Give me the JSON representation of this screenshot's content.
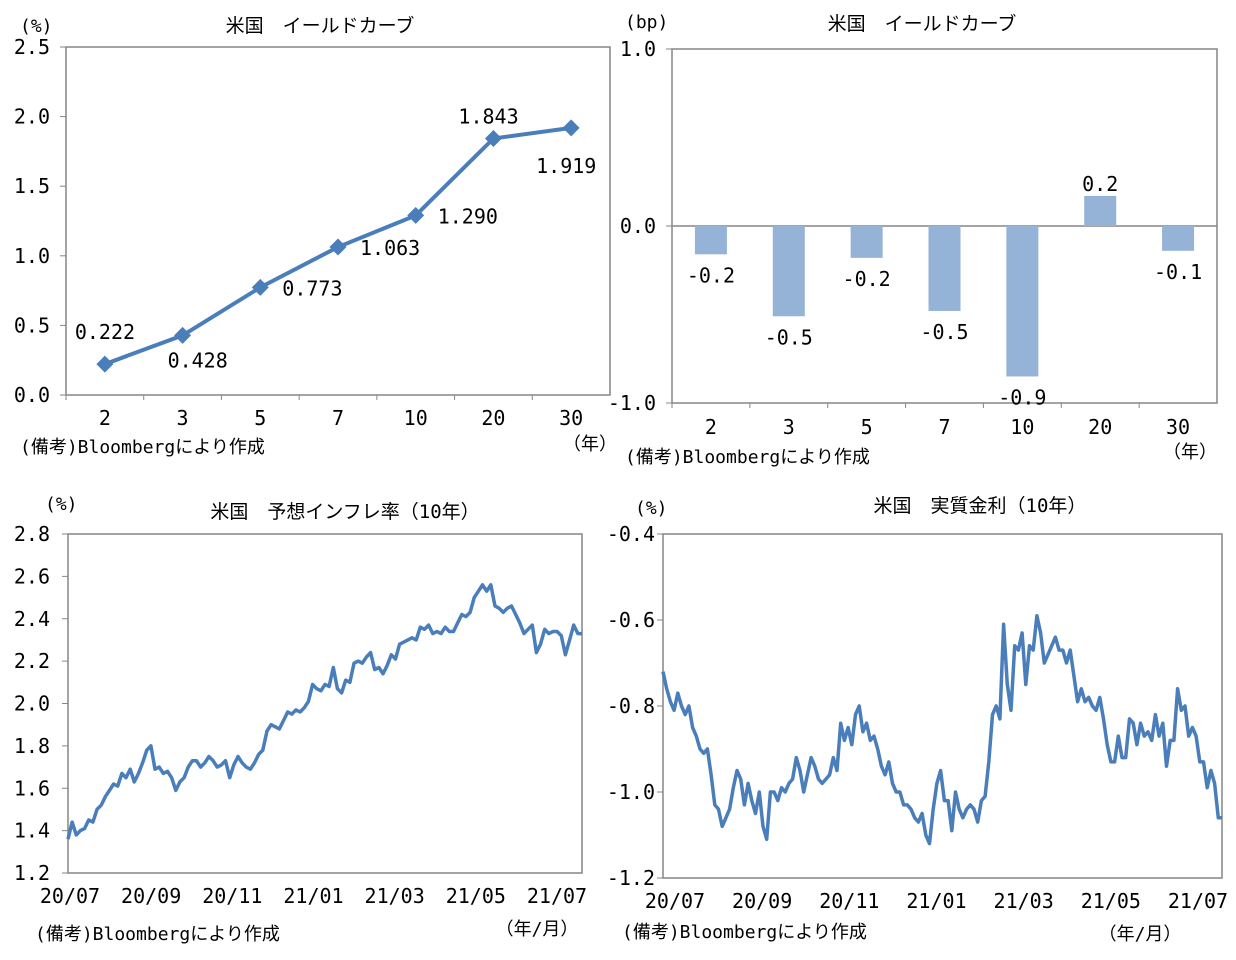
{
  "colors": {
    "line": "#4a7ebb",
    "bar": "#95b3d7",
    "axis": "#868686"
  },
  "chart_data": [
    {
      "type": "line",
      "title": "米国　イールドカーブ",
      "unit_label": "(%)",
      "xunit": "（年）",
      "note": "(備考)Bloombergにより作成",
      "categories": [
        "2",
        "3",
        "5",
        "7",
        "10",
        "20",
        "30"
      ],
      "values": [
        0.222,
        0.428,
        0.773,
        1.063,
        1.29,
        1.843,
        1.919
      ],
      "data_labels": [
        "0.222",
        "0.428",
        "0.773",
        "1.063",
        "1.290",
        "1.843",
        "1.919"
      ],
      "ylim": [
        0,
        2.5
      ],
      "yticks": [
        "0.0",
        "0.5",
        "1.0",
        "1.5",
        "2.0",
        "2.5"
      ],
      "grid": false
    },
    {
      "type": "bar",
      "title": "米国　イールドカーブ",
      "unit_label": "(bp)",
      "xunit": "（年）",
      "note": "(備考)Bloombergにより作成",
      "categories": [
        "2",
        "3",
        "5",
        "7",
        "10",
        "20",
        "30"
      ],
      "values": [
        -0.16,
        -0.51,
        -0.18,
        -0.48,
        -0.85,
        0.17,
        -0.14
      ],
      "data_labels": [
        "-0.2",
        "-0.5",
        "-0.2",
        "-0.5",
        "-0.9",
        "0.2",
        "-0.1"
      ],
      "ylim": [
        -1,
        1
      ],
      "yticks": [
        "-1.0",
        "0.0",
        "1.0"
      ],
      "grid": false
    },
    {
      "type": "line",
      "title": "米国　予想インフレ率（10年）",
      "unit_label": "(%)",
      "xunit": "（年/月）",
      "note": "(備考)Bloombergにより作成",
      "xticks": [
        "20/07",
        "20/09",
        "20/11",
        "21/01",
        "21/03",
        "21/05",
        "21/07"
      ],
      "ylim": [
        1.2,
        2.8
      ],
      "yticks": [
        "1.2",
        "1.4",
        "1.6",
        "1.8",
        "2.0",
        "2.2",
        "2.4",
        "2.6",
        "2.8"
      ],
      "values": [
        1.36,
        1.44,
        1.38,
        1.4,
        1.41,
        1.45,
        1.44,
        1.5,
        1.52,
        1.56,
        1.59,
        1.62,
        1.61,
        1.67,
        1.65,
        1.69,
        1.63,
        1.67,
        1.72,
        1.78,
        1.8,
        1.69,
        1.7,
        1.67,
        1.68,
        1.65,
        1.59,
        1.63,
        1.65,
        1.7,
        1.73,
        1.73,
        1.7,
        1.72,
        1.75,
        1.73,
        1.7,
        1.71,
        1.73,
        1.65,
        1.71,
        1.75,
        1.72,
        1.7,
        1.69,
        1.72,
        1.76,
        1.78,
        1.87,
        1.9,
        1.89,
        1.88,
        1.92,
        1.96,
        1.95,
        1.97,
        1.96,
        1.98,
        2.01,
        2.09,
        2.07,
        2.06,
        2.09,
        2.08,
        2.17,
        2.07,
        2.05,
        2.11,
        2.1,
        2.19,
        2.2,
        2.19,
        2.22,
        2.24,
        2.16,
        2.17,
        2.14,
        2.18,
        2.23,
        2.21,
        2.28,
        2.29,
        2.3,
        2.31,
        2.3,
        2.36,
        2.35,
        2.37,
        2.33,
        2.34,
        2.33,
        2.36,
        2.34,
        2.34,
        2.38,
        2.42,
        2.41,
        2.43,
        2.5,
        2.53,
        2.56,
        2.53,
        2.56,
        2.46,
        2.45,
        2.43,
        2.45,
        2.46,
        2.42,
        2.38,
        2.33,
        2.35,
        2.37,
        2.24,
        2.28,
        2.35,
        2.33,
        2.34,
        2.34,
        2.32,
        2.23,
        2.3,
        2.37,
        2.33,
        2.33
      ]
    },
    {
      "type": "line",
      "title": "米国　実質金利（10年）",
      "unit_label": "(%)",
      "xunit": "（年/月）",
      "note": "(備考)Bloombergにより作成",
      "xticks": [
        "20/07",
        "20/09",
        "20/11",
        "21/01",
        "21/03",
        "21/05",
        "21/07"
      ],
      "ylim": [
        -1.2,
        -0.4
      ],
      "yticks": [
        "-1.2",
        "-1.0",
        "-0.8",
        "-0.6",
        "-0.4"
      ],
      "values": [
        -0.72,
        -0.76,
        -0.79,
        -0.81,
        -0.77,
        -0.8,
        -0.82,
        -0.8,
        -0.85,
        -0.87,
        -0.9,
        -0.91,
        -0.9,
        -0.96,
        -1.03,
        -1.04,
        -1.08,
        -1.06,
        -1.04,
        -0.99,
        -0.95,
        -0.97,
        -1.03,
        -0.98,
        -1.02,
        -1.05,
        -1.0,
        -1.08,
        -1.11,
        -1.0,
        -1.0,
        -1.02,
        -0.99,
        -1.0,
        -0.98,
        -0.97,
        -0.92,
        -0.95,
        -1.0,
        -0.96,
        -0.92,
        -0.94,
        -0.97,
        -0.98,
        -0.97,
        -0.96,
        -0.92,
        -0.95,
        -0.84,
        -0.88,
        -0.85,
        -0.89,
        -0.82,
        -0.8,
        -0.86,
        -0.84,
        -0.88,
        -0.87,
        -0.9,
        -0.94,
        -0.96,
        -0.93,
        -0.98,
        -1.0,
        -1.0,
        -1.03,
        -1.03,
        -1.04,
        -1.06,
        -1.07,
        -1.05,
        -1.1,
        -1.12,
        -1.04,
        -0.98,
        -0.95,
        -1.02,
        -1.02,
        -1.09,
        -1.0,
        -1.04,
        -1.06,
        -1.04,
        -1.03,
        -1.04,
        -1.07,
        -1.02,
        -1.01,
        -0.93,
        -0.82,
        -0.8,
        -0.83,
        -0.61,
        -0.75,
        -0.81,
        -0.66,
        -0.67,
        -0.63,
        -0.75,
        -0.66,
        -0.67,
        -0.59,
        -0.63,
        -0.7,
        -0.68,
        -0.66,
        -0.64,
        -0.67,
        -0.67,
        -0.7,
        -0.67,
        -0.73,
        -0.79,
        -0.76,
        -0.79,
        -0.78,
        -0.8,
        -0.81,
        -0.78,
        -0.83,
        -0.89,
        -0.93,
        -0.93,
        -0.87,
        -0.92,
        -0.92,
        -0.83,
        -0.84,
        -0.89,
        -0.84,
        -0.87,
        -0.86,
        -0.88,
        -0.82,
        -0.87,
        -0.84,
        -0.94,
        -0.88,
        -0.88,
        -0.76,
        -0.81,
        -0.8,
        -0.87,
        -0.85,
        -0.87,
        -0.93,
        -0.93,
        -0.99,
        -0.95,
        -0.98,
        -1.06,
        -1.06
      ]
    }
  ]
}
